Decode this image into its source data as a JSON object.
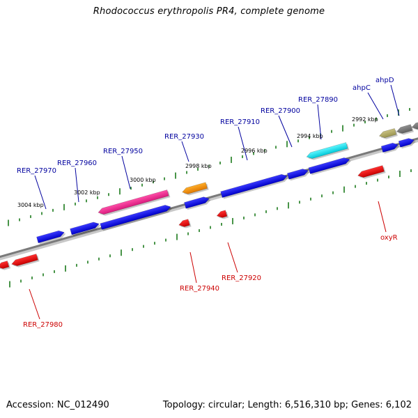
{
  "title": "Rhodococcus erythropolis PR4, complete genome",
  "footer": {
    "accession": "Accession: NC_012490",
    "summary": "Topology: circular; Length: 6,516,310 bp; Genes: 6,102"
  },
  "colors": {
    "forward_label": "#00009e",
    "reverse_label": "#cc0000",
    "tick": "#1a7a1a",
    "backbone": "#8a8a8a"
  },
  "scale_labels": [
    "3004 kbp",
    "3002 kbp",
    "3000 kbp",
    "2998 kbp",
    "2996 kbp",
    "2994 kbp",
    "2992 kbp"
  ],
  "genes_forward": [
    "RER_27970",
    "RER_27960",
    "RER_27950",
    "RER_27930",
    "RER_27910",
    "RER_27900",
    "RER_27890",
    "ahpC",
    "ahpD"
  ],
  "genes_reverse": [
    "RER_27980",
    "RER_27940",
    "RER_27920",
    "oxyR"
  ]
}
